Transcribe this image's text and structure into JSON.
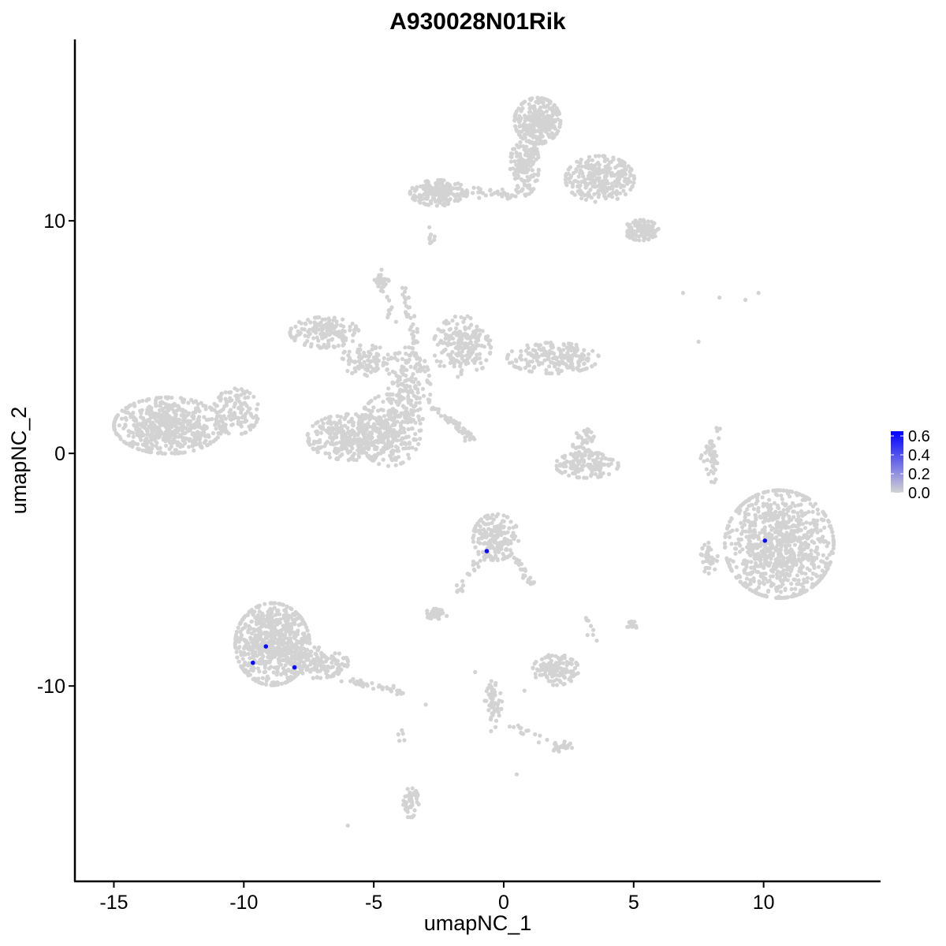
{
  "chart_data": {
    "type": "scatter",
    "title": "A930028N01Rik",
    "xlabel": "umapNC_1",
    "ylabel": "umapNC_2",
    "xlim": [
      -16.5,
      14.5
    ],
    "ylim": [
      -18.4,
      17.8
    ],
    "x_ticks": [
      -15,
      -10,
      -5,
      0,
      5,
      10
    ],
    "x_tick_labels": [
      "-15",
      "-10",
      "-5",
      "0",
      "5",
      "10"
    ],
    "y_ticks": [
      10,
      0,
      -10
    ],
    "y_tick_labels": [
      "10",
      "0",
      "-10"
    ],
    "grid": false,
    "background_color": "#d3d3d3",
    "low_color": "#d3d3d3",
    "high_color": "#0000ff",
    "legend": {
      "position": "right",
      "type": "colorbar",
      "range": [
        0,
        0.65
      ],
      "ticks": [
        0.6,
        0.4,
        0.2,
        0.0
      ],
      "tick_labels": [
        "0.6",
        "0.4",
        "0.2",
        "0.0"
      ]
    },
    "clusters": [
      {
        "cx": -12.9,
        "cy": 1.2,
        "rx": 1.9,
        "ry": 1.1,
        "n": 600
      },
      {
        "cx": -10.3,
        "cy": 1.8,
        "rx": 0.8,
        "ry": 0.9,
        "n": 120
      },
      {
        "cx": -5.9,
        "cy": 0.7,
        "rx": 1.5,
        "ry": 0.9,
        "n": 320
      },
      {
        "cx": -4.4,
        "cy": 1.0,
        "rx": 1.1,
        "ry": 1.4,
        "n": 260
      },
      {
        "cx": -3.7,
        "cy": 2.8,
        "rx": 0.8,
        "ry": 1.6,
        "n": 180
      },
      {
        "cx": -6.9,
        "cy": 5.2,
        "rx": 1.2,
        "ry": 0.6,
        "n": 160
      },
      {
        "cx": -5.3,
        "cy": 4.0,
        "rx": 0.9,
        "ry": 0.6,
        "n": 90
      },
      {
        "cx": -1.6,
        "cy": 4.6,
        "rx": 1.0,
        "ry": 1.2,
        "n": 200
      },
      {
        "cx": 1.9,
        "cy": 4.1,
        "rx": 1.6,
        "ry": 0.6,
        "n": 200
      },
      {
        "cx": -4.7,
        "cy": 7.4,
        "rx": 0.25,
        "ry": 0.25,
        "n": 30
      },
      {
        "cx": -2.5,
        "cy": 11.2,
        "rx": 1.0,
        "ry": 0.5,
        "n": 200
      },
      {
        "cx": 1.3,
        "cy": 14.3,
        "rx": 0.8,
        "ry": 0.9,
        "n": 300
      },
      {
        "cx": 0.8,
        "cy": 12.4,
        "rx": 0.5,
        "ry": 1.2,
        "n": 150
      },
      {
        "cx": 3.7,
        "cy": 11.8,
        "rx": 1.2,
        "ry": 0.9,
        "n": 260
      },
      {
        "cx": 5.3,
        "cy": 9.6,
        "rx": 0.6,
        "ry": 0.4,
        "n": 110
      },
      {
        "cx": 3.2,
        "cy": -0.5,
        "rx": 1.1,
        "ry": 0.5,
        "n": 130
      },
      {
        "cx": 3.1,
        "cy": 0.3,
        "rx": 0.4,
        "ry": 0.7,
        "n": 50
      },
      {
        "cx": -0.3,
        "cy": -3.6,
        "rx": 0.8,
        "ry": 0.9,
        "n": 190
      },
      {
        "cx": 10.6,
        "cy": -3.9,
        "rx": 1.9,
        "ry": 2.1,
        "n": 900
      },
      {
        "cx": 7.9,
        "cy": -4.5,
        "rx": 0.3,
        "ry": 0.6,
        "n": 40
      },
      {
        "cx": -8.9,
        "cy": -8.2,
        "rx": 1.3,
        "ry": 1.6,
        "n": 650
      },
      {
        "cx": -7.2,
        "cy": -9.0,
        "rx": 1.1,
        "ry": 0.6,
        "n": 160
      },
      {
        "cx": -2.6,
        "cy": -6.9,
        "rx": 0.4,
        "ry": 0.2,
        "n": 45
      },
      {
        "cx": 2.0,
        "cy": -9.3,
        "rx": 0.8,
        "ry": 0.6,
        "n": 130
      },
      {
        "cx": -0.4,
        "cy": -10.7,
        "rx": 0.3,
        "ry": 0.7,
        "n": 40
      },
      {
        "cx": 2.2,
        "cy": -12.6,
        "rx": 0.4,
        "ry": 0.2,
        "n": 25
      },
      {
        "cx": -3.6,
        "cy": -15.0,
        "rx": 0.3,
        "ry": 0.6,
        "n": 45
      },
      {
        "cx": 4.9,
        "cy": -7.4,
        "rx": 0.2,
        "ry": 0.2,
        "n": 15
      },
      {
        "cx": 8.0,
        "cy": -0.5,
        "rx": 0.2,
        "ry": 0.8,
        "n": 30
      },
      {
        "cx": -2.8,
        "cy": 9.3,
        "rx": 0.2,
        "ry": 0.4,
        "n": 10
      }
    ],
    "paths": [
      {
        "from": [
          -3.8,
          7.2
        ],
        "to": [
          -3.2,
          3.4
        ],
        "n": 40
      },
      {
        "from": [
          -2.8,
          2.0
        ],
        "to": [
          -1.3,
          0.8
        ],
        "n": 25
      },
      {
        "from": [
          -1.5,
          0.6
        ],
        "to": [
          -1.2,
          0.7
        ],
        "n": 5
      },
      {
        "from": [
          -1.2,
          11.3
        ],
        "to": [
          0.6,
          11.0
        ],
        "n": 30
      },
      {
        "from": [
          -2.0,
          1.4
        ],
        "to": [
          -1.2,
          0.7
        ],
        "n": 20
      },
      {
        "from": [
          -1.8,
          -6.0
        ],
        "to": [
          -0.6,
          -4.0
        ],
        "n": 25
      },
      {
        "from": [
          0.4,
          -4.4
        ],
        "to": [
          1.2,
          -5.8
        ],
        "n": 25
      },
      {
        "from": [
          -6.1,
          -9.8
        ],
        "to": [
          -3.8,
          -10.3
        ],
        "n": 40
      },
      {
        "from": [
          -0.5,
          -9.7
        ],
        "to": [
          -0.3,
          -12.0
        ],
        "n": 15
      },
      {
        "from": [
          0.3,
          -11.7
        ],
        "to": [
          1.8,
          -12.5
        ],
        "n": 15
      },
      {
        "from": [
          3.5,
          -8.2
        ],
        "to": [
          3.2,
          -7.0
        ],
        "n": 8
      },
      {
        "from": [
          -3.9,
          -11.8
        ],
        "to": [
          -4.0,
          -12.5
        ],
        "n": 5
      },
      {
        "from": [
          7.6,
          -0.3
        ],
        "to": [
          8.3,
          1.1
        ],
        "n": 20
      },
      {
        "from": [
          -4.7,
          7.4
        ],
        "to": [
          -4.2,
          5.6
        ],
        "n": 15
      },
      {
        "from": [
          3.1,
          12.5
        ],
        "to": [
          4.9,
          11.6
        ],
        "n": 30
      }
    ],
    "isolated_points": [
      [
        6.9,
        6.9
      ],
      [
        8.3,
        6.7
      ],
      [
        9.3,
        6.6
      ],
      [
        9.8,
        6.9
      ],
      [
        7.5,
        4.8
      ],
      [
        -6.0,
        -16.0
      ],
      [
        0.5,
        -13.8
      ],
      [
        -1.1,
        -9.4
      ],
      [
        0.8,
        -10.2
      ],
      [
        -4.7,
        7.9
      ],
      [
        5.7,
        9.4
      ],
      [
        -3.0,
        -10.8
      ]
    ],
    "expressing_points": [
      {
        "x": -9.65,
        "y": -9.0,
        "value": 0.62
      },
      {
        "x": -9.15,
        "y": -8.3,
        "value": 0.62
      },
      {
        "x": -8.05,
        "y": -9.2,
        "value": 0.62
      },
      {
        "x": -0.65,
        "y": -4.2,
        "value": 0.62
      },
      {
        "x": 10.05,
        "y": -3.75,
        "value": 0.62
      }
    ]
  }
}
